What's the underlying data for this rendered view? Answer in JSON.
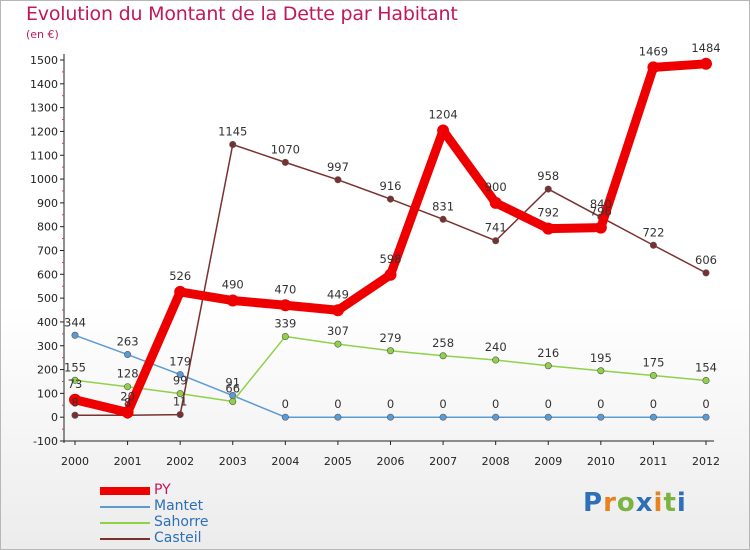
{
  "title": "Evolution du Montant de la Dette par Habitant",
  "unit": "(en €)",
  "logo": {
    "text": "Proxiti",
    "letters": [
      "P",
      "r",
      "o",
      "x",
      "i",
      "t",
      "i"
    ],
    "colors": [
      "#2e6fb7",
      "#e8821e",
      "#7cb342",
      "#2e6fb7",
      "#e8821e",
      "#7cb342",
      "#2e6fb7"
    ]
  },
  "chart_data": {
    "type": "line",
    "title": "Evolution du Montant de la Dette par Habitant",
    "ylabel": "(en €)",
    "xlabel": "",
    "x": [
      "2000",
      "2001",
      "2002",
      "2003",
      "2004",
      "2005",
      "2006",
      "2007",
      "2008",
      "2009",
      "2010",
      "2011",
      "2012"
    ],
    "ylim": [
      -100,
      1500
    ],
    "yticks": [
      "-100",
      "0",
      "100",
      "200",
      "300",
      "400",
      "500",
      "600",
      "700",
      "800",
      "900",
      "1000",
      "1100",
      "1200",
      "1300",
      "1400",
      "1500"
    ],
    "grid": false,
    "legend_position": "bottom-left",
    "series": [
      {
        "name": "PY",
        "color": "#ee0000",
        "values": [
          73,
          20,
          526,
          490,
          470,
          449,
          598,
          1204,
          900,
          792,
          796,
          1469,
          1484
        ],
        "labels": [
          "73",
          "20",
          "526",
          "490",
          "470",
          "449",
          "598",
          "1204",
          "900",
          "792",
          "796",
          "1469",
          "1484"
        ]
      },
      {
        "name": "Mantet",
        "color": "#5b9bd5",
        "values": [
          344,
          263,
          179,
          91,
          0,
          0,
          0,
          0,
          0,
          0,
          0,
          0,
          0
        ],
        "labels": [
          "344",
          "263",
          "179",
          "91",
          "0",
          "0",
          "0",
          "0",
          "0",
          "0",
          "0",
          "0",
          "0"
        ]
      },
      {
        "name": "Sahorre",
        "color": "#8fd24a",
        "values": [
          155,
          128,
          99,
          66,
          339,
          307,
          279,
          258,
          240,
          216,
          195,
          175,
          154
        ],
        "labels": [
          "155",
          "128",
          "99",
          "66",
          "339",
          "307",
          "279",
          "258",
          "240",
          "216",
          "195",
          "175",
          "154"
        ]
      },
      {
        "name": "Casteil",
        "color": "#7a3030",
        "values": [
          8,
          8,
          11,
          1145,
          1070,
          997,
          916,
          831,
          741,
          958,
          840,
          722,
          606
        ],
        "labels": [
          "8",
          "8",
          "11",
          "1145",
          "1070",
          "997",
          "916",
          "831",
          "741",
          "958",
          "840",
          "722",
          "606"
        ]
      }
    ]
  }
}
